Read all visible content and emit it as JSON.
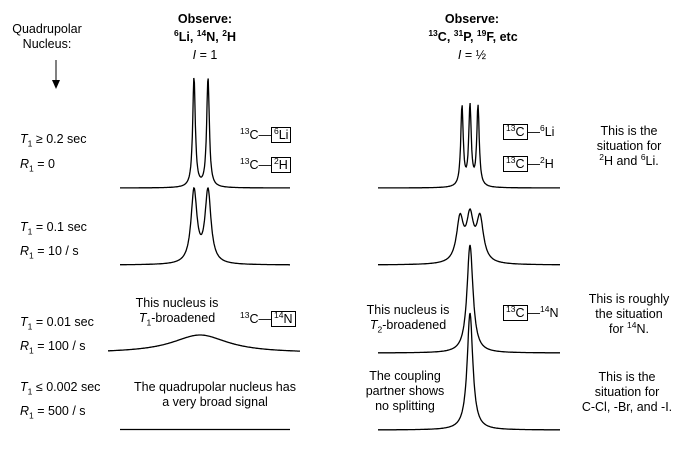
{
  "nucleus_label": {
    "line1": "Quadrupolar",
    "line2": "Nucleus:"
  },
  "col_left": {
    "observe": "Observe:",
    "nuclei": [
      {
        "mass": "6",
        "sym": "Li"
      },
      {
        "mass": "14",
        "sym": "N"
      },
      {
        "mass": "2",
        "sym": "H"
      }
    ],
    "spin": "= 1"
  },
  "col_right": {
    "observe": "Observe:",
    "nuclei": [
      {
        "mass": "13",
        "sym": "C"
      },
      {
        "mass": "31",
        "sym": "P"
      },
      {
        "mass": "19",
        "sym": "F"
      }
    ],
    "etc": "etc",
    "spin": "= ½"
  },
  "rows": [
    {
      "t1": "≥ 0.2 sec",
      "r1": "= 0"
    },
    {
      "t1": "= 0.1 sec",
      "r1": "= 10 / s"
    },
    {
      "t1": "= 0.01 sec",
      "r1": "= 100 / s"
    },
    {
      "t1": "≤ 0.002 sec",
      "r1": "= 500 / s"
    }
  ],
  "symbols": {
    "T": "T",
    "R": "R",
    "I": "I",
    "sub": "1",
    "sub2": "2"
  },
  "labels": {
    "c13": {
      "mass": "13",
      "sym": "C"
    },
    "li6": {
      "mass": "6",
      "sym": "Li"
    },
    "h2": {
      "mass": "2",
      "sym": "H"
    },
    "n14": {
      "mass": "14",
      "sym": "N"
    }
  },
  "notes": {
    "t1_broad": {
      "line1": "This nucleus is",
      "line2": "-broadened"
    },
    "t2_broad": {
      "line1": "This nucleus is",
      "line2": "-broadened"
    },
    "quad_broad": {
      "line1": "The quadrupolar nucleus has",
      "line2": "a very broad signal"
    },
    "coupling": {
      "line1": "The coupling",
      "line2": "partner shows",
      "line3": "no splitting"
    },
    "sit1": {
      "line1": "This is the",
      "line2": "situation for",
      "h": "2",
      "hs": "H and ",
      "li": "6",
      "lis": "Li."
    },
    "sit2": {
      "line1": "This is roughly",
      "line2": "the situation",
      "line3a": "for ",
      "n": "14",
      "ns": "N."
    },
    "sit3": {
      "line1": "This is the",
      "line2": "situation for",
      "line3": "C-Cl, -Br, and -I."
    }
  }
}
